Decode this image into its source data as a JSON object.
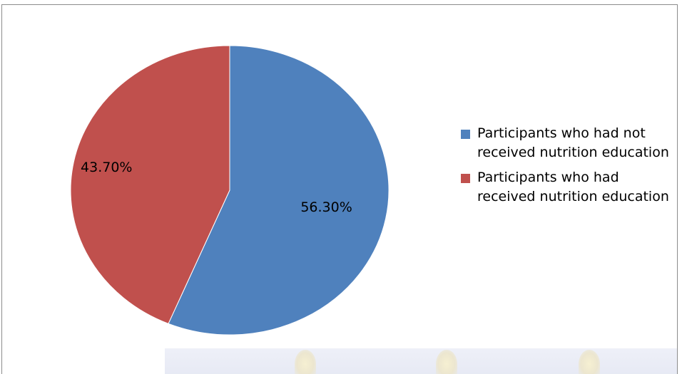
{
  "chart_data": {
    "type": "pie",
    "categories": [
      "Participants who had not received nutrition education",
      "Participants who had received nutrition education"
    ],
    "values": [
      56.3,
      43.7
    ],
    "labels": [
      "56.30%",
      "43.70%"
    ],
    "colors": [
      "#4F81BD",
      "#C0504D"
    ],
    "legend_position": "right",
    "start_angle_deg": 0,
    "direction": "clockwise"
  }
}
